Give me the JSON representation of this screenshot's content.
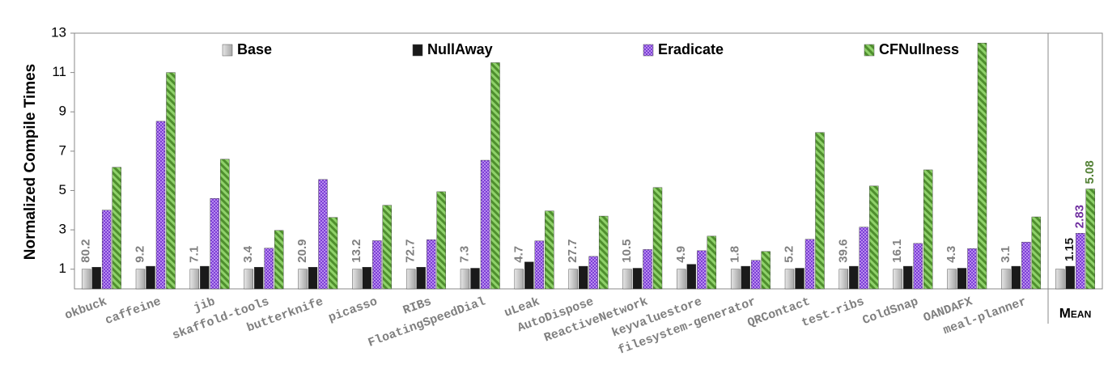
{
  "chart_data": {
    "type": "bar",
    "y_label": "Normalized Compile Times",
    "categories": [
      "okbuck",
      "caffeine",
      "jib",
      "skaffold-tools",
      "butterknife",
      "picasso",
      "RIBs",
      "FloatingSpeedDial",
      "uLeak",
      "AutoDispose",
      "ReactiveNetwork",
      "keyvaluestore",
      "filesystem-generator",
      "QRContact",
      "test-ribs",
      "ColdSnap",
      "OANDAFX",
      "meal-planner",
      "Mean"
    ],
    "series": [
      {
        "name": "Base",
        "color": "#bfbfbf",
        "values": [
          1,
          1,
          1,
          1,
          1,
          1,
          1,
          1,
          1,
          1,
          1,
          1,
          1,
          1,
          1,
          1,
          1,
          1,
          1
        ]
      },
      {
        "name": "NullAway",
        "color": "#1a1a1a",
        "values": [
          1.1,
          1.15,
          1.15,
          1.1,
          1.1,
          1.1,
          1.1,
          1.05,
          1.37,
          1.15,
          1.05,
          1.25,
          1.15,
          1.05,
          1.15,
          1.15,
          1.05,
          1.15,
          1.15
        ]
      },
      {
        "name": "Eradicate",
        "color": "#9b59e8",
        "values": [
          4.0,
          8.52,
          4.6,
          2.07,
          5.56,
          2.45,
          2.5,
          6.54,
          2.44,
          1.65,
          2.0,
          1.94,
          1.45,
          2.52,
          3.14,
          2.31,
          2.05,
          2.38,
          2.83
        ]
      },
      {
        "name": "CFNullness",
        "color": "#70ad47",
        "values": [
          6.18,
          11.0,
          6.59,
          2.97,
          3.63,
          4.25,
          4.94,
          11.5,
          3.96,
          3.7,
          5.15,
          2.68,
          1.9,
          7.95,
          5.23,
          6.05,
          12.5,
          3.66,
          5.08
        ]
      }
    ],
    "base_labels": [
      "80.2",
      "9.2",
      "7.1",
      "3.4",
      "20.9",
      "13.2",
      "72.7",
      "7.3",
      "4.7",
      "27.7",
      "10.5",
      "4.9",
      "1.8",
      "5.2",
      "39.6",
      "16.1",
      "4.3",
      "3.1",
      null
    ],
    "label_colors": [
      "#808080",
      "#1a1a1a",
      "#7030a0",
      "#538135"
    ],
    "ylim": [
      0,
      13
    ],
    "yticks": [
      1,
      3,
      5,
      7,
      9,
      11,
      13
    ],
    "grid": false,
    "legend": "top"
  }
}
